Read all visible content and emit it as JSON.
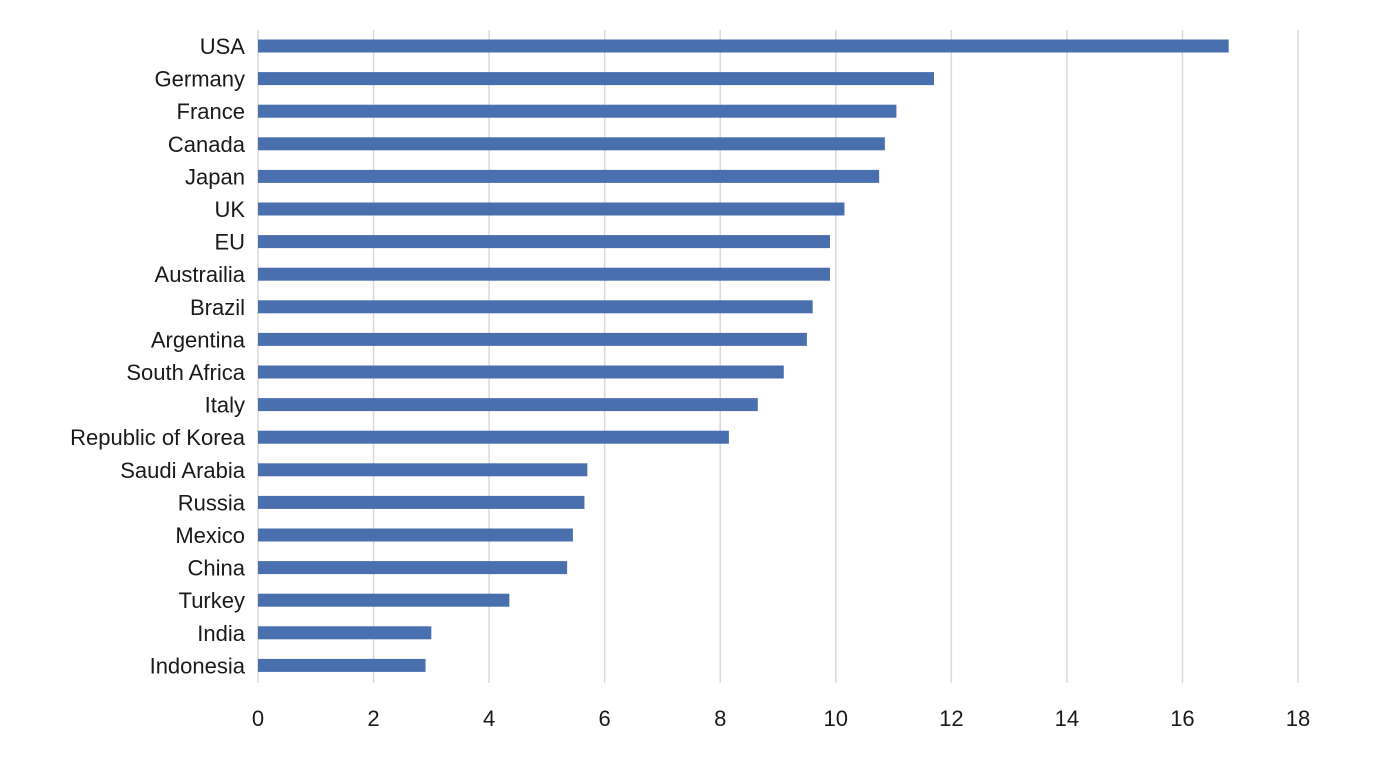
{
  "chart_data": {
    "type": "bar",
    "orientation": "horizontal",
    "categories": [
      "USA",
      "Germany",
      "France",
      "Canada",
      "Japan",
      "UK",
      "EU",
      "Austrailia",
      "Brazil",
      "Argentina",
      "South Africa",
      "Italy",
      "Republic of Korea",
      "Saudi Arabia",
      "Russia",
      "Mexico",
      "China",
      "Turkey",
      "India",
      "Indonesia"
    ],
    "values": [
      16.8,
      11.7,
      11.05,
      10.85,
      10.75,
      10.15,
      9.9,
      9.9,
      9.6,
      9.5,
      9.1,
      8.65,
      8.15,
      5.7,
      5.65,
      5.45,
      5.35,
      4.35,
      3.0,
      2.9
    ],
    "x_ticks": [
      "0",
      "2",
      "4",
      "6",
      "8",
      "10",
      "12",
      "14",
      "16",
      "18"
    ],
    "xlim": [
      0,
      18
    ],
    "grid": "vertical",
    "bar_color": "#4a6faf",
    "grid_color": "#d9d9d9",
    "title": "",
    "xlabel": "",
    "ylabel": ""
  }
}
